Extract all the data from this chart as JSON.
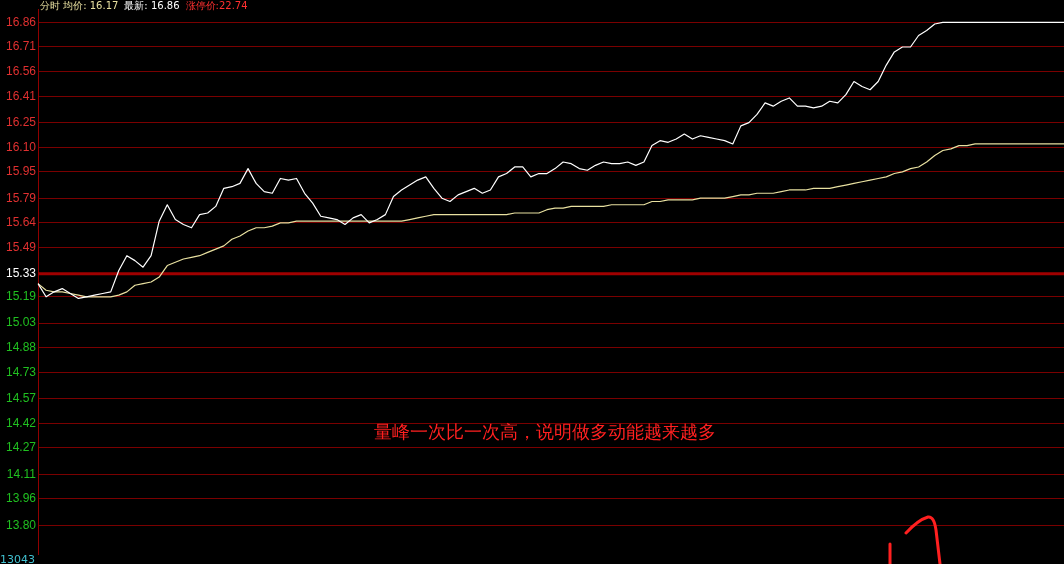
{
  "chart_data": {
    "type": "line",
    "annotations": [
      "分时 均价: 16.17",
      "最新: 16.86",
      "涨停价:22.74",
      "量峰一次比一次高，说明做多动能越来越多",
      "13043"
    ],
    "categories": [
      null,
      null,
      null,
      null,
      null,
      null,
      null,
      null,
      null,
      null,
      null,
      null,
      null,
      null,
      null,
      null,
      null,
      null,
      null,
      null,
      null,
      null,
      null,
      null,
      null,
      null,
      null,
      null,
      null,
      null,
      null,
      null,
      null,
      null,
      null,
      null,
      null,
      null,
      null,
      null,
      null,
      null,
      null,
      null,
      null,
      null,
      null,
      null,
      null,
      null,
      null,
      null,
      null,
      null,
      null,
      null,
      null,
      null,
      null,
      null,
      null,
      null,
      null,
      null,
      null,
      null,
      null,
      null,
      null,
      null,
      null,
      null,
      null,
      null,
      null,
      null,
      null,
      null,
      null,
      null,
      null,
      null,
      null,
      null,
      null,
      null,
      null,
      null,
      null,
      null,
      null,
      null,
      null,
      null,
      null,
      null,
      null,
      null,
      null,
      null,
      null,
      null,
      null,
      null,
      null,
      null,
      null,
      null,
      null,
      null,
      null,
      null,
      null,
      null,
      null,
      null,
      null,
      null,
      null,
      null,
      null,
      null,
      null,
      null,
      null,
      null,
      null,
      null
    ],
    "series": [
      {
        "color": "#ffffff",
        "values": [
          15.27,
          15.19,
          15.22,
          15.24,
          15.21,
          15.18,
          15.19,
          15.2,
          15.21,
          15.22,
          15.35,
          15.44,
          15.41,
          15.37,
          15.44,
          15.65,
          15.75,
          15.66,
          15.63,
          15.61,
          15.69,
          15.7,
          15.74,
          15.85,
          15.86,
          15.88,
          15.97,
          15.88,
          15.83,
          15.82,
          15.91,
          15.9,
          15.91,
          15.82,
          15.76,
          15.68,
          15.67,
          15.66,
          15.63,
          15.67,
          15.69,
          15.64,
          15.66,
          15.69,
          15.8,
          15.84,
          15.87,
          15.9,
          15.92,
          15.85,
          15.79,
          15.77,
          15.81,
          15.83,
          15.85,
          15.82,
          15.84,
          15.92,
          15.94,
          15.98,
          15.98,
          15.92,
          15.94,
          15.94,
          15.97,
          16.01,
          16.0,
          15.97,
          15.96,
          15.99,
          16.01,
          16.0,
          16.0,
          16.01,
          15.99,
          16.01,
          16.11,
          16.14,
          16.13,
          16.15,
          16.18,
          16.15,
          16.17,
          16.16,
          16.15,
          16.14,
          16.12,
          16.23,
          16.25,
          16.3,
          16.37,
          16.35,
          16.38,
          16.4,
          16.35,
          16.35,
          16.34,
          16.35,
          16.38,
          16.37,
          16.42,
          16.5,
          16.47,
          16.45,
          16.5,
          16.6,
          16.68,
          16.71,
          16.71,
          16.78,
          16.81,
          16.85,
          16.86,
          16.86,
          16.86,
          16.86,
          16.86,
          16.86,
          16.86,
          16.86,
          16.86,
          16.86,
          16.86,
          16.86,
          16.86,
          16.86,
          16.86,
          16.86
        ]
      },
      {
        "color": "#e8e0a0",
        "values": [
          15.27,
          15.23,
          15.22,
          15.22,
          15.21,
          15.2,
          15.19,
          15.19,
          15.19,
          15.19,
          15.2,
          15.22,
          15.26,
          15.27,
          15.28,
          15.31,
          15.38,
          15.4,
          15.42,
          15.43,
          15.44,
          15.46,
          15.48,
          15.5,
          15.54,
          15.56,
          15.59,
          15.61,
          15.61,
          15.62,
          15.64,
          15.64,
          15.65,
          15.65,
          15.65,
          15.65,
          15.65,
          15.65,
          15.65,
          15.65,
          15.65,
          15.65,
          15.65,
          15.65,
          15.65,
          15.65,
          15.66,
          15.67,
          15.68,
          15.69,
          15.69,
          15.69,
          15.69,
          15.69,
          15.69,
          15.69,
          15.69,
          15.69,
          15.69,
          15.7,
          15.7,
          15.7,
          15.7,
          15.72,
          15.73,
          15.73,
          15.74,
          15.74,
          15.74,
          15.74,
          15.74,
          15.75,
          15.75,
          15.75,
          15.75,
          15.75,
          15.77,
          15.77,
          15.78,
          15.78,
          15.78,
          15.78,
          15.79,
          15.79,
          15.79,
          15.79,
          15.8,
          15.81,
          15.81,
          15.82,
          15.82,
          15.82,
          15.83,
          15.84,
          15.84,
          15.84,
          15.85,
          15.85,
          15.85,
          15.86,
          15.87,
          15.88,
          15.89,
          15.9,
          15.91,
          15.92,
          15.94,
          15.95,
          15.97,
          15.98,
          16.01,
          16.05,
          16.08,
          16.09,
          16.11,
          16.11,
          16.12,
          16.12,
          16.12,
          16.12,
          16.12,
          16.12,
          16.12,
          16.12,
          16.12,
          16.12,
          16.12,
          16.12
        ]
      }
    ],
    "ylim": [
      13.62,
      16.94
    ],
    "yticks": [
      16.86,
      16.71,
      16.56,
      16.41,
      16.25,
      {
        "value": 16.1,
        "label": "16.10"
      },
      15.95,
      15.79,
      15.64,
      15.49,
      15.33,
      15.19,
      15.03,
      14.88,
      14.73,
      14.57,
      14.42,
      14.27,
      14.11,
      13.96,
      {
        "value": 13.8,
        "label": "13.80"
      }
    ],
    "ref_lines": [
      {
        "axis": "y",
        "value": 15.33,
        "color": "#a00000"
      }
    ],
    "grid": "y",
    "tick_labels": "y",
    "marker": "none",
    "line_style": "solid"
  }
}
